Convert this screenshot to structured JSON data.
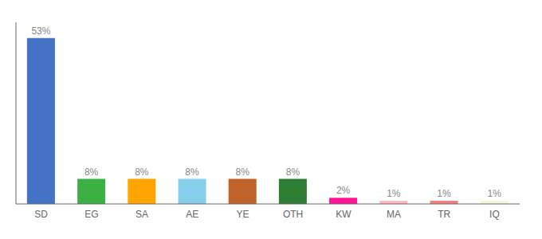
{
  "chart_data": {
    "type": "bar",
    "categories": [
      "SD",
      "EG",
      "SA",
      "AE",
      "YE",
      "OTH",
      "KW",
      "MA",
      "TR",
      "IQ"
    ],
    "values": [
      53,
      8,
      8,
      8,
      8,
      8,
      2,
      1,
      1,
      1
    ],
    "value_labels": [
      "53%",
      "8%",
      "8%",
      "8%",
      "8%",
      "8%",
      "2%",
      "1%",
      "1%",
      "1%"
    ],
    "colors": [
      "#4472C4",
      "#3CB043",
      "#FFA500",
      "#87CEEB",
      "#C0622A",
      "#2E7D32",
      "#FF1493",
      "#FFB6C1",
      "#F08080",
      "#F5F5DC"
    ],
    "ylim": [
      0,
      58
    ],
    "data_labels": true,
    "tick_labels": "x",
    "grid": false
  }
}
